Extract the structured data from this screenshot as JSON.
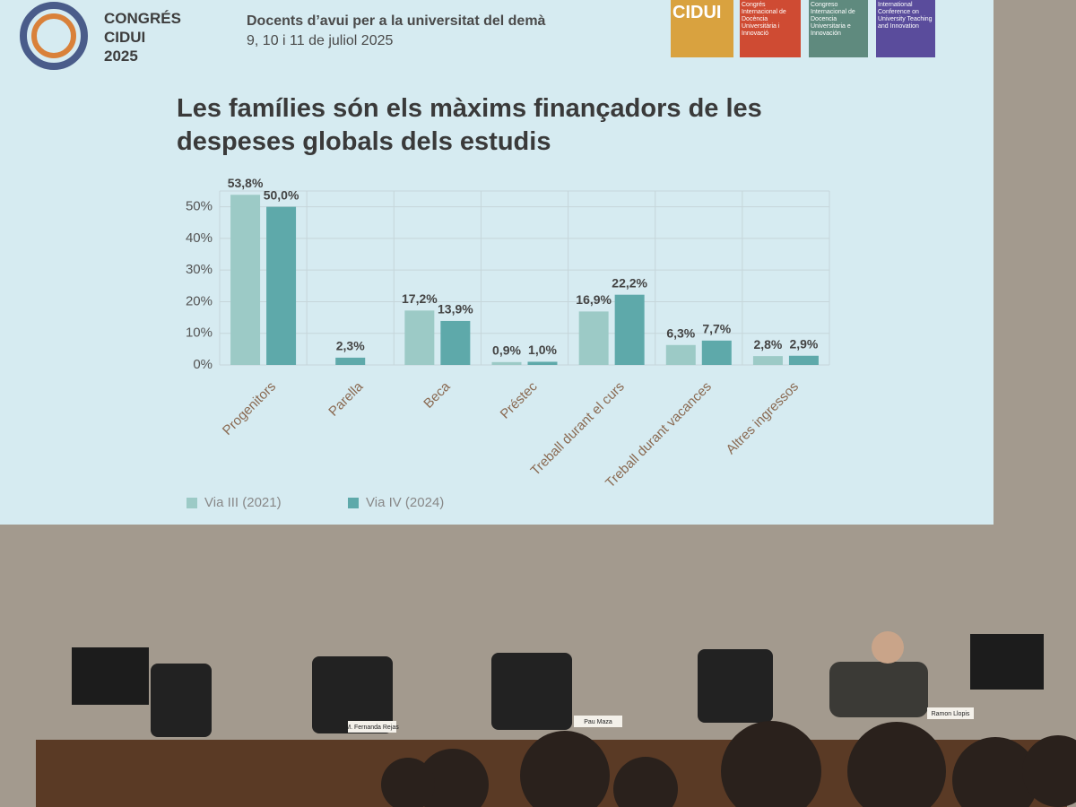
{
  "header": {
    "congress": [
      "CONGRÉS",
      "CIDUI",
      "2025"
    ],
    "tagline": "Docents d’avui per a la universitat del demà",
    "dates": "9, 10 i 11 de juliol 2025",
    "logos": [
      "CIDUI",
      "Congrés Internacional de Docència Universitària i Innovació",
      "Congreso Internacional de Docencia Universitaria e Innovación",
      "International Conference on University Teaching and Innovation"
    ]
  },
  "chart_data": {
    "type": "bar",
    "title": "Les famílies són els màxims finançadors de les despeses globals dels estudis",
    "categories": [
      "Progenitors",
      "Parella",
      "Beca",
      "Préstec",
      "Treball durant el curs",
      "Treball durant vacances",
      "Altres ingressos"
    ],
    "series": [
      {
        "name": "Via III (2021)",
        "color": "#9ccac6",
        "values": [
          53.8,
          null,
          17.2,
          0.9,
          16.9,
          6.3,
          2.8
        ],
        "value_labels": [
          "53,8%",
          null,
          "17,2%",
          "0,9%",
          "16,9%",
          "6,3%",
          "2,8%"
        ]
      },
      {
        "name": "Via IV (2024)",
        "color": "#5ea9aa",
        "values": [
          50.0,
          2.3,
          13.9,
          1.0,
          22.2,
          7.7,
          2.9
        ],
        "value_labels": [
          "50,0%",
          "2,3%",
          "13,9%",
          "1,0%",
          "22,2%",
          "7,7%",
          "2,9%"
        ]
      }
    ],
    "ylim": [
      0,
      55
    ],
    "yticks": [
      {
        "value": 0,
        "label": "0%"
      },
      {
        "value": 10,
        "label": "10%"
      },
      {
        "value": 20,
        "label": "20%"
      },
      {
        "value": 30,
        "label": "30%"
      },
      {
        "value": 40,
        "label": "40%"
      },
      {
        "value": 50,
        "label": "50%"
      }
    ],
    "grid": true,
    "legend": "bottom-left"
  },
  "name_plates": [
    "M. Fernanda Rejas",
    "Pau Maza",
    "Ramon Llopis"
  ]
}
